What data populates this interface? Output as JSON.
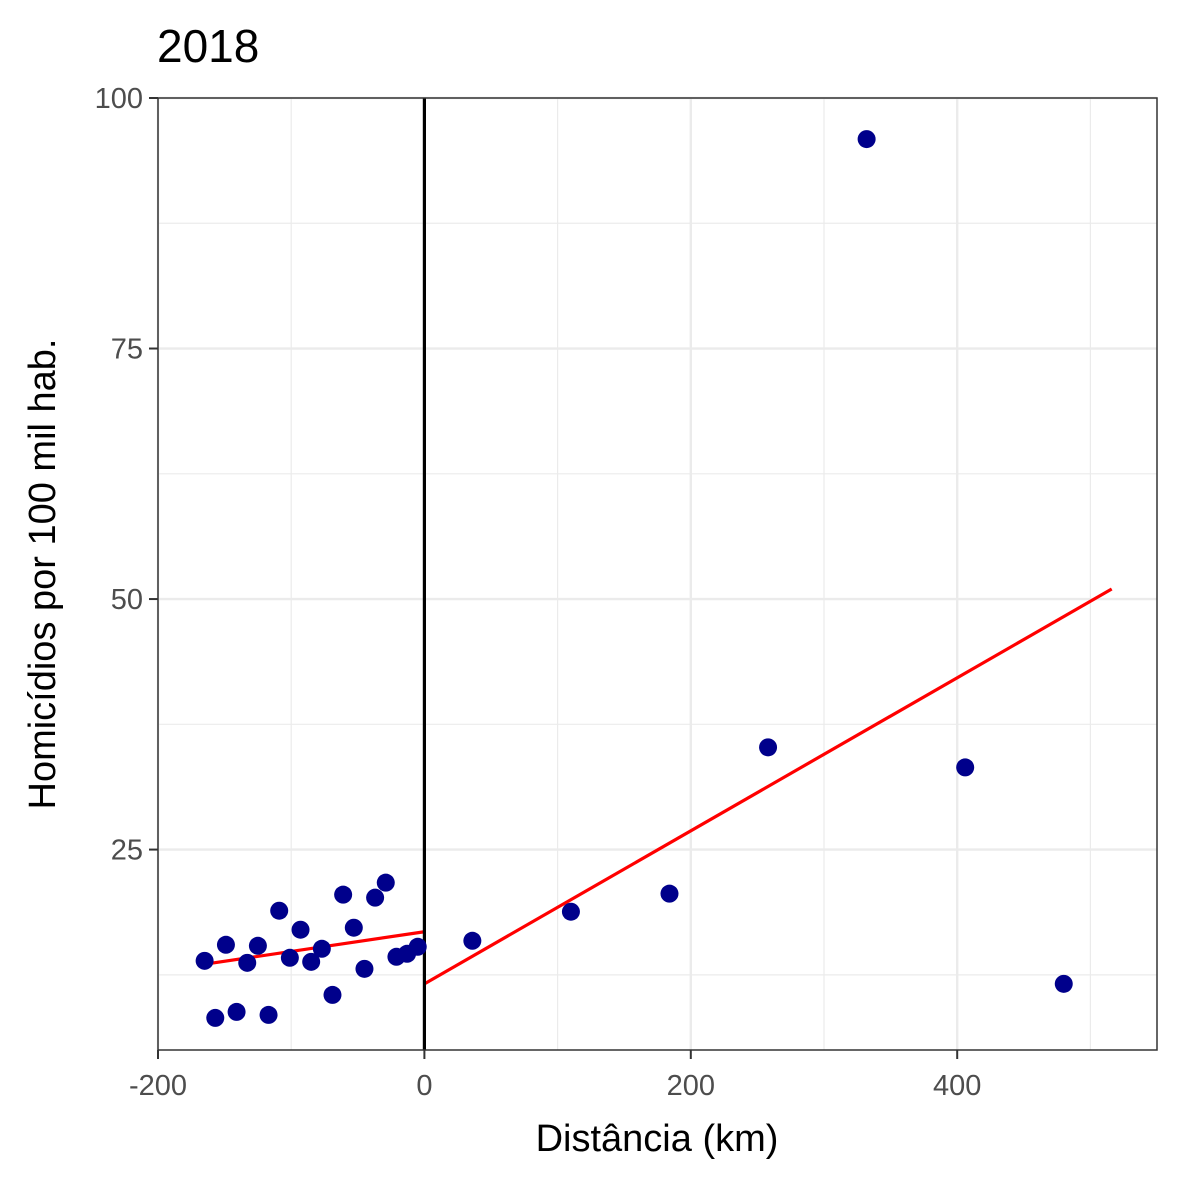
{
  "chart_data": {
    "type": "scatter",
    "title": "2018",
    "xlabel": "Distância (km)",
    "ylabel": "Homicídios por 100 mil hab.",
    "xlim": [
      -200,
      550
    ],
    "ylim": [
      5,
      100
    ],
    "x_ticks": [
      -200,
      0,
      200,
      400
    ],
    "x_tick_labels": [
      "-200",
      "0",
      "200",
      "400"
    ],
    "y_ticks": [
      25,
      50,
      75,
      100
    ],
    "y_tick_labels": [
      "25",
      "50",
      "75",
      "100"
    ],
    "grid": true,
    "cutoff_x": 0,
    "points": [
      {
        "x": -165,
        "y": 13.9
      },
      {
        "x": -157,
        "y": 8.2
      },
      {
        "x": -149,
        "y": 15.5
      },
      {
        "x": -141,
        "y": 8.8
      },
      {
        "x": -133,
        "y": 13.7
      },
      {
        "x": -125,
        "y": 15.4
      },
      {
        "x": -117,
        "y": 8.5
      },
      {
        "x": -109,
        "y": 18.9
      },
      {
        "x": -101,
        "y": 14.2
      },
      {
        "x": -93,
        "y": 17.0
      },
      {
        "x": -85,
        "y": 13.8
      },
      {
        "x": -77,
        "y": 15.1
      },
      {
        "x": -69,
        "y": 10.5
      },
      {
        "x": -61,
        "y": 20.5
      },
      {
        "x": -53,
        "y": 17.2
      },
      {
        "x": -45,
        "y": 13.1
      },
      {
        "x": -37,
        "y": 20.2
      },
      {
        "x": -29,
        "y": 21.7
      },
      {
        "x": -21,
        "y": 14.3
      },
      {
        "x": -13,
        "y": 14.6
      },
      {
        "x": -5,
        "y": 15.3
      },
      {
        "x": 36,
        "y": 15.9
      },
      {
        "x": 110,
        "y": 18.8
      },
      {
        "x": 184,
        "y": 20.6
      },
      {
        "x": 258,
        "y": 35.2
      },
      {
        "x": 332,
        "y": 95.9
      },
      {
        "x": 406,
        "y": 33.2
      },
      {
        "x": 480,
        "y": 11.6
      }
    ],
    "fit_lines": [
      {
        "x": [
          -168,
          0
        ],
        "y": [
          13.5,
          16.8
        ]
      },
      {
        "x": [
          0,
          516
        ],
        "y": [
          11.6,
          51.0
        ]
      }
    ],
    "colors": {
      "points": "#00008B",
      "fit_line": "#FF0000",
      "cutoff_line": "#000000",
      "grid": "#EBEBEB",
      "panel_border": "#333333"
    }
  }
}
